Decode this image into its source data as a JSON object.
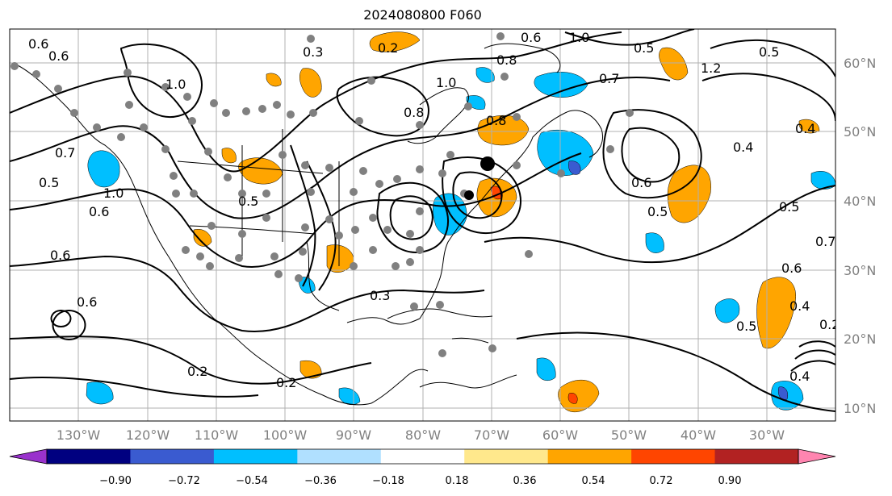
{
  "title": "2024080800 F060",
  "lat_labels": [
    "60°N",
    "50°N",
    "40°N",
    "30°N",
    "20°N",
    "10°N"
  ],
  "lon_labels": [
    "130°W",
    "120°W",
    "110°W",
    "100°W",
    "90°W",
    "80°W",
    "70°W",
    "60°W",
    "50°W",
    "40°W",
    "30°W"
  ],
  "colorbar": {
    "ticks": [
      "−0.90",
      "−0.72",
      "−0.54",
      "−0.36",
      "−0.18",
      "0.18",
      "0.36",
      "0.54",
      "0.72",
      "0.90"
    ],
    "colors": [
      "#9932cc",
      "#000080",
      "#3a5bd0",
      "#00bfff",
      "#b0e0ff",
      "#ffffff",
      "#ffe88c",
      "#ffa500",
      "#ff4500",
      "#b22222",
      "#ff85b0"
    ]
  },
  "contour_labels": [
    "0.6",
    "0.6",
    "0.3",
    "0.2",
    "1.0",
    "0.8",
    "1.0",
    "0.8",
    "0.6",
    "0.5",
    "0.7",
    "1.0",
    "0.6",
    "0.6",
    "0.5",
    "0.2",
    "0.2",
    "0.3",
    "0.8",
    "0.7",
    "0.4",
    "0.4",
    "0.6",
    "0.5",
    "0.5",
    "0.4",
    "0.5",
    "0.2",
    "0.4",
    "1.2",
    "1.0",
    "0.5",
    "0.7",
    "0.6",
    "0.6",
    "0.5"
  ]
}
